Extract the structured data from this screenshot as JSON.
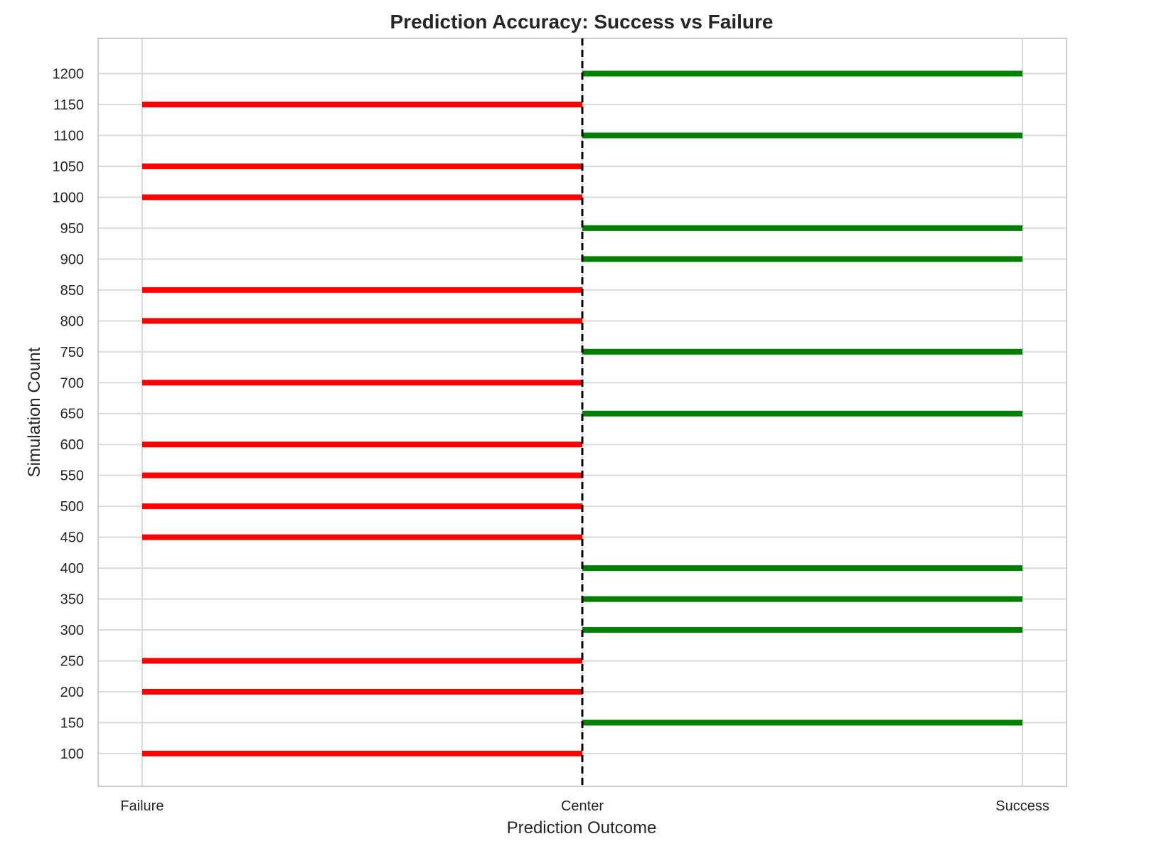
{
  "chart_data": {
    "type": "bar",
    "orientation": "horizontal-diverging",
    "title": "Prediction Accuracy: Success vs Failure",
    "xlabel": "Prediction Outcome",
    "ylabel": "Simulation Count",
    "x_ticks": [
      {
        "value": -1,
        "label": "Failure"
      },
      {
        "value": 0,
        "label": "Center"
      },
      {
        "value": 1,
        "label": "Success"
      }
    ],
    "xlim": [
      -1.1,
      1.1
    ],
    "y_ticks": [
      100,
      150,
      200,
      250,
      300,
      350,
      400,
      450,
      500,
      550,
      600,
      650,
      700,
      750,
      800,
      850,
      900,
      950,
      1000,
      1050,
      1100,
      1150,
      1200
    ],
    "ylim": [
      47,
      1257
    ],
    "grid": true,
    "center_line": {
      "x": 0,
      "style": "dashed",
      "color": "#000000"
    },
    "colors": {
      "success": "#008000",
      "failure": "#ff0000"
    },
    "y": [
      100,
      150,
      200,
      250,
      300,
      350,
      400,
      450,
      500,
      550,
      600,
      650,
      700,
      750,
      800,
      850,
      900,
      950,
      1000,
      1050,
      1100,
      1150,
      1200
    ],
    "values": [
      -1,
      1,
      -1,
      -1,
      1,
      1,
      1,
      -1,
      -1,
      -1,
      -1,
      1,
      -1,
      1,
      -1,
      -1,
      1,
      1,
      -1,
      -1,
      1,
      -1,
      1
    ]
  }
}
